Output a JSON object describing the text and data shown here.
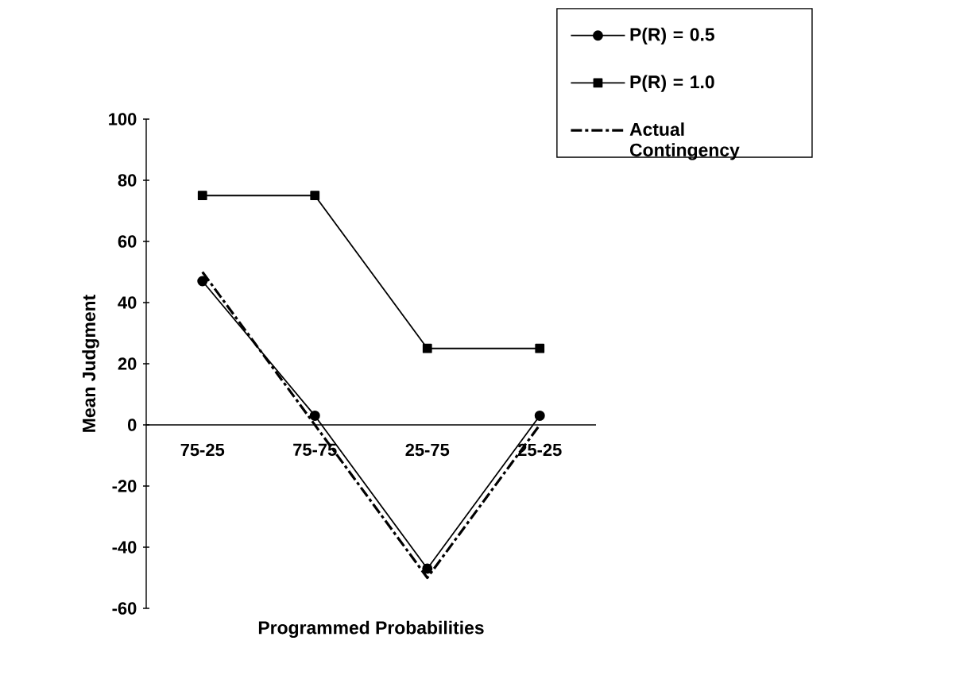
{
  "chart_data": {
    "type": "line",
    "xlabel": "Programmed Probabilities",
    "ylabel": "Mean Judgment",
    "categories": [
      "75-25",
      "75-75",
      "25-75",
      "25-25"
    ],
    "series": [
      {
        "name": "P(R) = 0.5",
        "color": "#000000",
        "values": [
          47,
          3,
          -47,
          3
        ],
        "marker": "circle",
        "line_style": "solid"
      },
      {
        "name": "P(R) = 1.0",
        "color": "#000000",
        "values": [
          75,
          75,
          25,
          25
        ],
        "marker": "square",
        "line_style": "solid"
      },
      {
        "name": "Actual Contingency",
        "color": "#000000",
        "values": [
          50,
          0,
          -50,
          0
        ],
        "marker": "none",
        "line_style": "dashed"
      }
    ],
    "ylim": [
      -60,
      100
    ],
    "yticks": [
      -60,
      -40,
      -20,
      0,
      20,
      40,
      60,
      80,
      100
    ],
    "grid": false,
    "legend": "top right"
  }
}
